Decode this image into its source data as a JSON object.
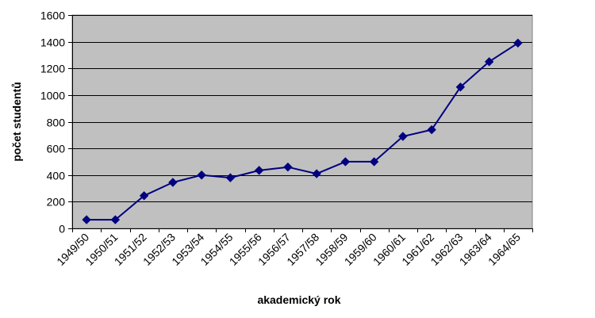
{
  "chart_data": {
    "type": "line",
    "title": "",
    "xlabel": "akademický rok",
    "ylabel": "počet studentů",
    "ylim": [
      0,
      1600
    ],
    "yticks": [
      0,
      200,
      400,
      600,
      800,
      1000,
      1200,
      1400,
      1600
    ],
    "grid": true,
    "legend": "none",
    "categories": [
      "1949/50",
      "1950/51",
      "1951/52",
      "1952/53",
      "1953/54",
      "1954/55",
      "1955/56",
      "1956/57",
      "1957/58",
      "1958/59",
      "1959/60",
      "1960/61",
      "1961/62",
      "1962/63",
      "1963/64",
      "1964/65"
    ],
    "series": [
      {
        "values": [
          65,
          65,
          245,
          345,
          400,
          380,
          435,
          460,
          410,
          500,
          500,
          690,
          740,
          1060,
          1250,
          1390
        ]
      }
    ],
    "colors": {
      "plot_background": "#c0c0c0",
      "series_line": "#000080",
      "grid": "#000000"
    }
  }
}
